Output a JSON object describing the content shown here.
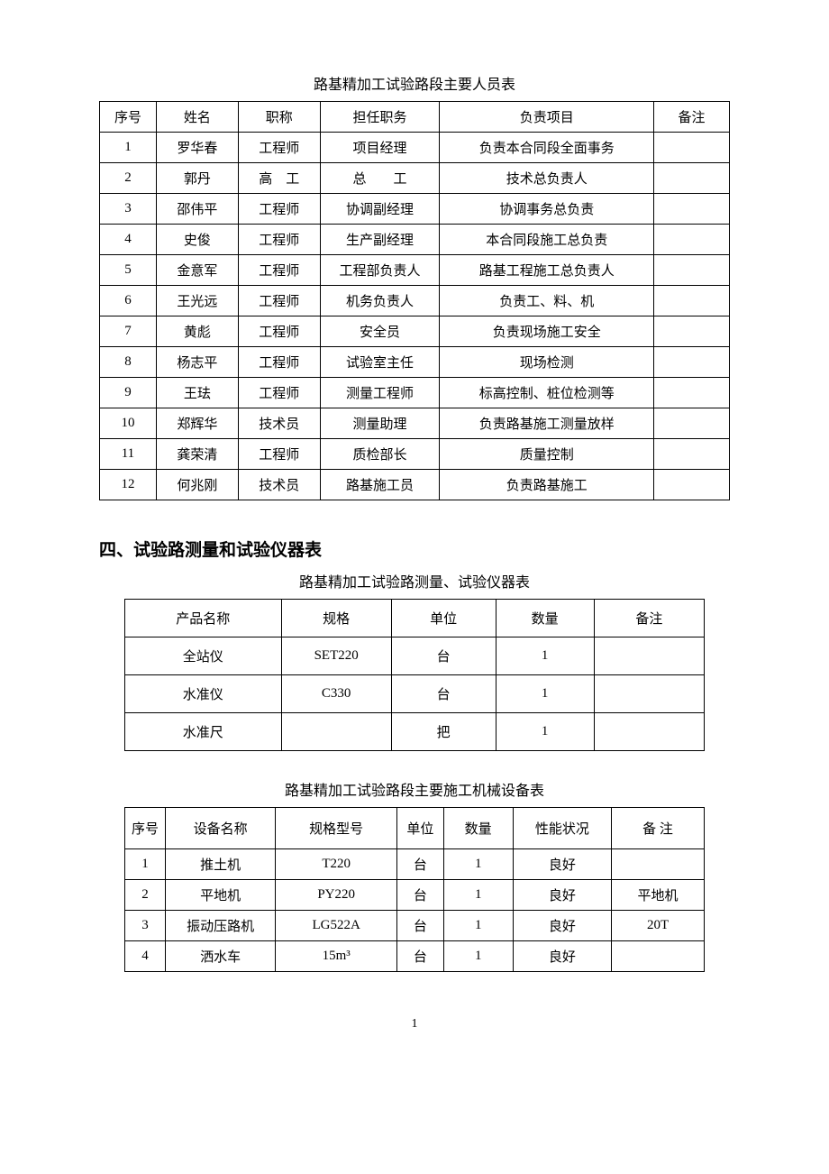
{
  "personnel": {
    "caption": "路基精加工试验路段主要人员表",
    "columns": [
      "序号",
      "姓名",
      "职称",
      "担任职务",
      "负责项目",
      "备注"
    ],
    "rows": [
      [
        "1",
        "罗华春",
        "工程师",
        "项目经理",
        "负责本合同段全面事务",
        ""
      ],
      [
        "2",
        "郭丹",
        "高　工",
        "总　　工",
        "技术总负责人",
        ""
      ],
      [
        "3",
        "邵伟平",
        "工程师",
        "协调副经理",
        "协调事务总负责",
        ""
      ],
      [
        "4",
        "史俊",
        "工程师",
        "生产副经理",
        "本合同段施工总负责",
        ""
      ],
      [
        "5",
        "金意军",
        "工程师",
        "工程部负责人",
        "路基工程施工总负责人",
        ""
      ],
      [
        "6",
        "王光远",
        "工程师",
        "机务负责人",
        "负责工、料、机",
        ""
      ],
      [
        "7",
        "黄彪",
        "工程师",
        "安全员",
        "负责现场施工安全",
        ""
      ],
      [
        "8",
        "杨志平",
        "工程师",
        "试验室主任",
        "现场检测",
        ""
      ],
      [
        "9",
        "王珐",
        "工程师",
        "测量工程师",
        "标高控制、桩位检测等",
        ""
      ],
      [
        "10",
        "郑辉华",
        "技术员",
        "测量助理",
        "负责路基施工测量放样",
        ""
      ],
      [
        "11",
        "龚荣清",
        "工程师",
        "质检部长",
        "质量控制",
        ""
      ],
      [
        "12",
        "何兆刚",
        "技术员",
        "路基施工员",
        "负责路基施工",
        ""
      ]
    ],
    "col_widths": [
      "9%",
      "13%",
      "13%",
      "19%",
      "34%",
      "12%"
    ]
  },
  "section4_heading": "四、试验路测量和试验仪器表",
  "instruments": {
    "caption": "路基精加工试验路测量、试验仪器表",
    "columns": [
      "产品名称",
      "规格",
      "单位",
      "数量",
      "备注"
    ],
    "rows": [
      [
        "全站仪",
        "SET220",
        "台",
        "1",
        ""
      ],
      [
        "水准仪",
        "C330",
        "台",
        "1",
        ""
      ],
      [
        "水准尺",
        "",
        "把",
        "1",
        ""
      ]
    ],
    "col_widths": [
      "27%",
      "19%",
      "18%",
      "17%",
      "19%"
    ]
  },
  "machinery": {
    "caption": "路基精加工试验路段主要施工机械设备表",
    "columns": [
      "序号",
      "设备名称",
      "规格型号",
      "单位",
      "数量",
      "性能状况",
      "备 注"
    ],
    "rows": [
      [
        "1",
        "推土机",
        "T220",
        "台",
        "1",
        "良好",
        ""
      ],
      [
        "2",
        "平地机",
        "PY220",
        "台",
        "1",
        "良好",
        "平地机"
      ],
      [
        "3",
        "振动压路机",
        "LG522A",
        "台",
        "1",
        "良好",
        "20T"
      ],
      [
        "4",
        "洒水车",
        "15m³",
        "台",
        "1",
        "良好",
        ""
      ]
    ],
    "col_widths": [
      "7%",
      "19%",
      "21%",
      "8%",
      "12%",
      "17%",
      "16%"
    ]
  },
  "page_number": "1"
}
